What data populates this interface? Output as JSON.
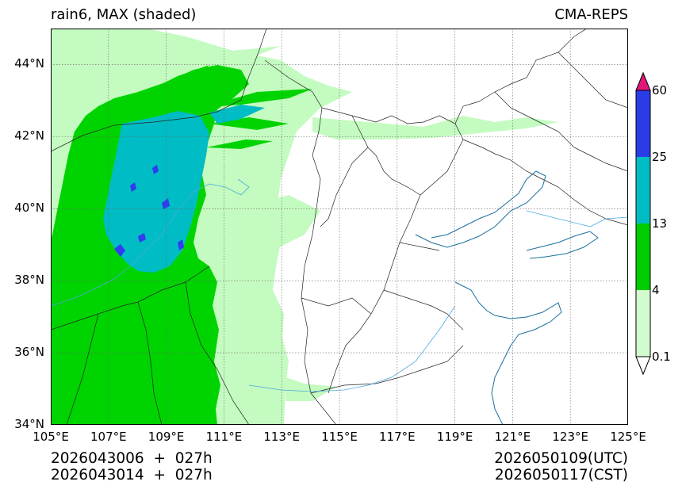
{
  "header": {
    "title_left": "rain6, MAX (shaded)",
    "title_right": "CMA-REPS"
  },
  "axes": {
    "lat_labels": [
      "34°N",
      "36°N",
      "38°N",
      "40°N",
      "42°N",
      "44°N"
    ],
    "lon_labels": [
      "105°E",
      "107°E",
      "109°E",
      "111°E",
      "113°E",
      "115°E",
      "117°E",
      "119°E",
      "121°E",
      "123°E",
      "125°E"
    ],
    "lat_values": [
      34,
      36,
      38,
      40,
      42,
      44
    ],
    "lon_values": [
      105,
      107,
      109,
      111,
      113,
      115,
      117,
      119,
      121,
      123,
      125
    ],
    "lat_range": [
      34,
      45
    ],
    "lon_range": [
      105,
      125
    ]
  },
  "colorbar": {
    "labels": [
      "0.1",
      "4",
      "13",
      "25",
      "60"
    ],
    "levels": [
      0.1,
      4,
      13,
      25,
      60
    ],
    "colors": [
      "#d2fccf",
      "#00cc00",
      "#00bcc4",
      "#2a3ce6"
    ],
    "under_color": "#ffffff",
    "over_color": "#e0187a"
  },
  "palette": {
    "light_green": "#c4fbc0",
    "green": "#00d400",
    "cyan": "#00bcc4",
    "blue": "#2f3cf0",
    "boundary": "#222222",
    "river": "#4aa8e0",
    "coast": "#1a6fa0"
  },
  "footer": {
    "init_utc": "2026043006  +  027h",
    "init_cst": "2026043014  +  027h",
    "valid_utc": "2026050109(UTC)",
    "valid_cst": "2026050117(CST)"
  }
}
